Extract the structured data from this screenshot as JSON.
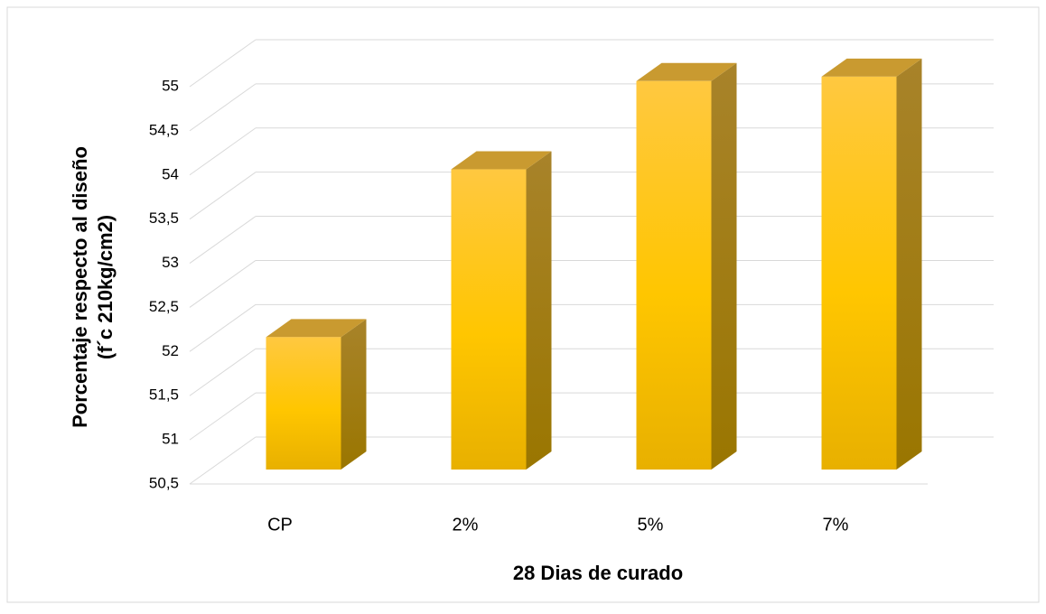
{
  "chart_data": {
    "type": "bar3d",
    "xlabel": "28 Dias de curado",
    "ylabel": [
      "Porcentaje respecto al diseño",
      "(f´c 210kg/cm2)"
    ],
    "categories": [
      "CP",
      "2%",
      "5%",
      "7%"
    ],
    "values": [
      52,
      53.9,
      54.9,
      54.95
    ],
    "color": "#ffc000",
    "ylim": [
      50.5,
      55
    ],
    "yticks": [
      {
        "value": 50.5,
        "label": "50,5"
      },
      51,
      {
        "value": 51.5,
        "label": "51,5"
      },
      52,
      {
        "value": 52.5,
        "label": "52,5"
      },
      53,
      {
        "value": 53.5,
        "label": "53,5"
      },
      54,
      {
        "value": 54.5,
        "label": "54,5"
      },
      55
    ],
    "grid": true
  }
}
